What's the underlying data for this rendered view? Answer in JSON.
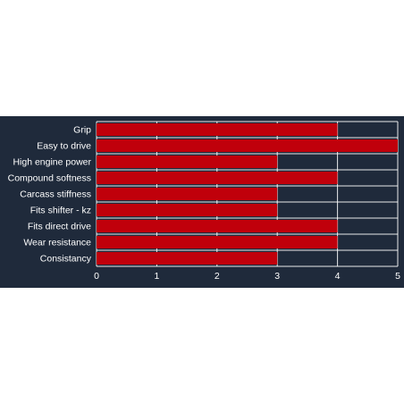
{
  "chart_data": {
    "type": "bar",
    "orientation": "horizontal",
    "categories": [
      "Grip",
      "Easy to drive",
      "High engine power",
      "Compound softness",
      "Carcass stiffness",
      "Fits shifter - kz",
      "Fits direct drive",
      "Wear resistance",
      "Consistancy"
    ],
    "values": [
      4,
      5,
      3,
      4,
      3,
      3,
      4,
      4,
      3
    ],
    "xlim": [
      0,
      5
    ],
    "xticks": [
      "0",
      "1",
      "2",
      "3",
      "4",
      "5"
    ],
    "grid": true,
    "colors": {
      "background": "#1f2a3b",
      "bar": "#c0000b",
      "grid": "#ffffff",
      "text": "#ffffff"
    }
  }
}
